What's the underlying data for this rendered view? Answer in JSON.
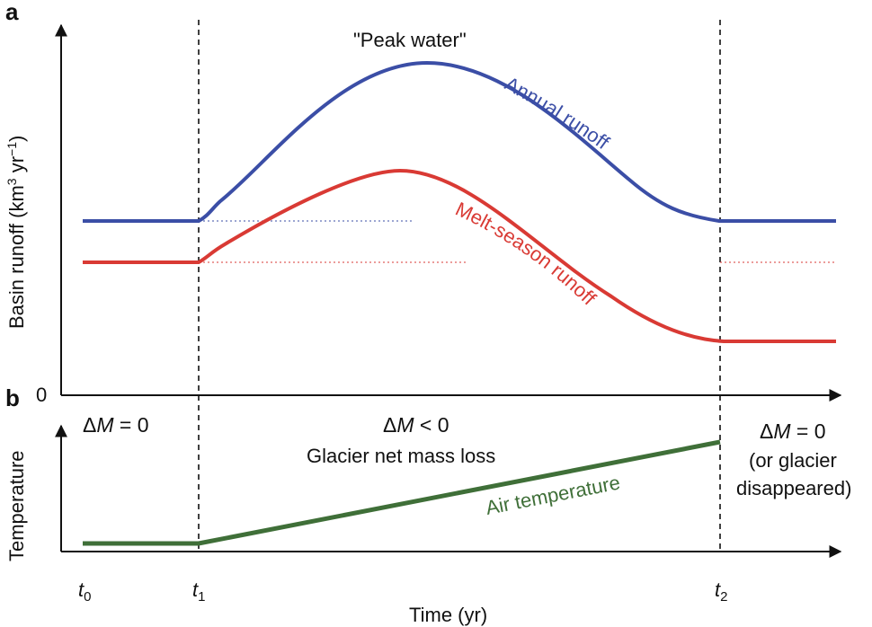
{
  "panel_a": {
    "letter": "a",
    "y_axis_label": "Basin runoff (km",
    "y_axis_sup1": "3",
    "y_axis_mid": " yr",
    "y_axis_sup2": "−1",
    "y_axis_close": ")",
    "zero_label": "0",
    "peak_label": "\"Peak water\"",
    "annual_label": "Annual runoff",
    "melt_label": "Melt-season runoff",
    "annual_color": "#3b4ea6",
    "melt_color": "#d93a34"
  },
  "panel_b": {
    "letter": "b",
    "y_axis_label": "Temperature",
    "dm_left_delta": "Δ",
    "dm_left_var": "M",
    "dm_left_rel": " = 0",
    "dm_mid_delta": "Δ",
    "dm_mid_var": "M",
    "dm_mid_rel": " < 0",
    "mid_caption": "Glacier net mass loss",
    "dm_right_delta": "Δ",
    "dm_right_var": "M",
    "dm_right_rel": " = 0",
    "right_line1": "(or glacier",
    "right_line2": "disappeared)",
    "air_label": "Air temperature",
    "air_color": "#3f6f38"
  },
  "x_axis": {
    "label": "Time (yr)",
    "ticks": [
      {
        "base": "t",
        "sub": "0"
      },
      {
        "base": "t",
        "sub": "1"
      },
      {
        "base": "t",
        "sub": "2"
      }
    ]
  }
}
